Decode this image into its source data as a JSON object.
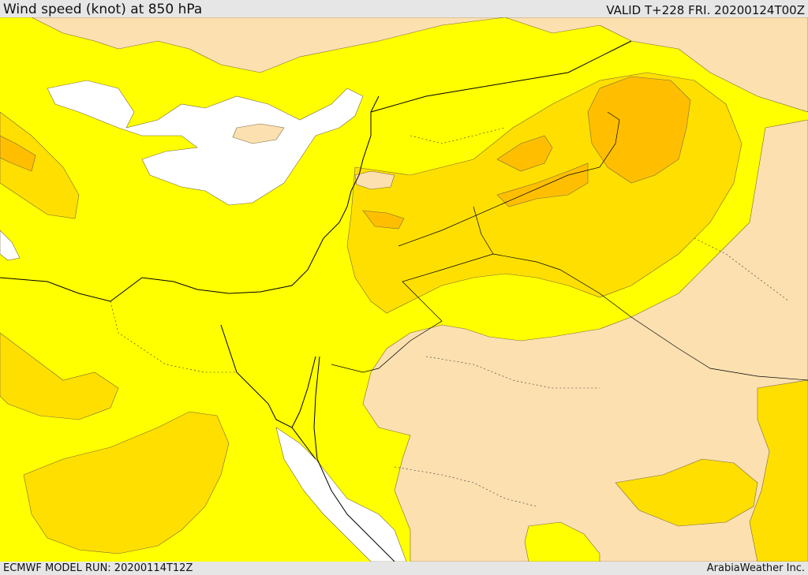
{
  "header": {
    "title": "Wind speed (knot) at 850 hPa",
    "valid": "VALID T+228 FRI. 20200124T00Z"
  },
  "footer": {
    "model_run": "ECMWF MODEL RUN: 20200114T12Z",
    "provider": "ArabiaWeather Inc."
  },
  "colors": {
    "calm": "#ffffff",
    "light": "#fce0b0",
    "moderate": "#ffff00",
    "strong": "#ffdf00",
    "very_strong": "#ffbf00",
    "boundary": "#000000"
  }
}
